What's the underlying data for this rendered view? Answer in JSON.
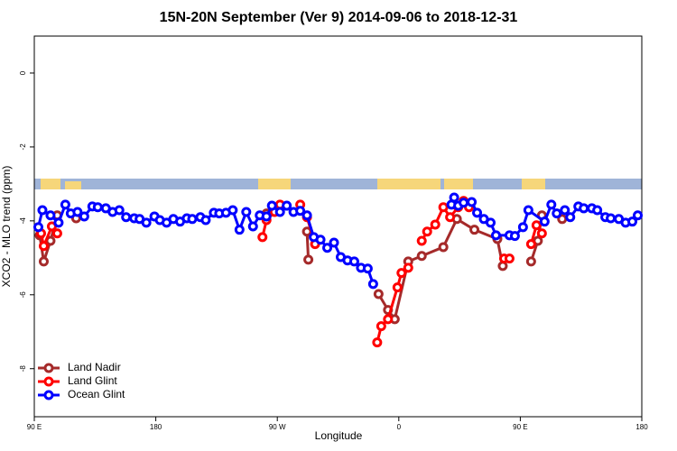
{
  "chart_data": {
    "type": "line",
    "title": "15N-20N September (Ver 9)   2014-09-06 to 2018-12-31",
    "x_label": "Longitude",
    "y_label": "XCO2 - MLO trend (ppm)",
    "xlim": [
      -270,
      180
    ],
    "xticks": [
      {
        "value": -270,
        "label": "90 E"
      },
      {
        "value": -180,
        "label": "180"
      },
      {
        "value": -90,
        "label": "90 W"
      },
      0,
      {
        "value": 90,
        "label": "90 E"
      },
      180
    ],
    "ylim": [
      -9.3,
      1.0
    ],
    "yticks": [
      0,
      -2,
      -4,
      -6,
      -8
    ],
    "legend": "bottom-left",
    "series": [
      {
        "name": "Land Nadir",
        "color": "#a52a2a",
        "x": [
          -266,
          -263,
          -258,
          -253,
          null,
          -239,
          null,
          -98,
          null,
          -68,
          -67,
          null,
          -15,
          -8,
          -3,
          7,
          17,
          33,
          43,
          56,
          73,
          77,
          null,
          98,
          103,
          106,
          null,
          121
        ],
        "values": [
          -4.39,
          -5.1,
          -4.54,
          -3.85,
          null,
          -3.93,
          null,
          -3.8,
          null,
          -4.29,
          -5.05,
          null,
          -5.98,
          -6.41,
          -6.66,
          -5.1,
          -4.95,
          -4.71,
          -3.95,
          -4.24,
          -4.49,
          -5.22,
          null,
          -5.1,
          -4.54,
          -3.85,
          null,
          -3.95
        ]
      },
      {
        "name": "Land Glint",
        "color": "#ff0000",
        "x": [
          -265,
          -263,
          -257,
          -253,
          null,
          -101,
          -98,
          -92,
          -88,
          null,
          -73,
          -68,
          -62,
          null,
          -16,
          -13,
          -8,
          -1,
          2,
          7,
          null,
          17,
          21,
          27,
          33,
          38,
          44,
          48,
          52,
          null,
          78,
          82,
          null,
          98,
          102,
          106
        ],
        "values": [
          -4.34,
          -4.68,
          -4.15,
          -4.34,
          null,
          -4.44,
          -3.98,
          -3.76,
          -3.56,
          null,
          -3.56,
          -3.9,
          -4.63,
          null,
          -7.29,
          -6.85,
          -6.66,
          -5.8,
          -5.41,
          -5.27,
          null,
          -4.54,
          -4.29,
          -4.1,
          -3.63,
          -3.9,
          -3.63,
          -3.46,
          -3.63,
          null,
          -5.02,
          -5.02,
          null,
          -4.63,
          -4.12,
          -4.34
        ]
      },
      {
        "name": "Ocean Glint",
        "color": "#0000ff",
        "x": [
          -267,
          -264,
          -258,
          -252,
          -247,
          -243,
          -238,
          -233,
          -227,
          -223,
          -217,
          -212,
          -207,
          -202,
          -196,
          -192,
          -187,
          -181,
          -177,
          -172,
          -167,
          -162,
          -157,
          -153,
          -147,
          -143,
          -137,
          -133,
          -128,
          -123,
          -118,
          -113,
          -108,
          -103,
          -98,
          -94,
          -88,
          -83,
          -78,
          -73,
          -68,
          -63,
          -58,
          -53,
          -48,
          -43,
          -38,
          -33,
          -28,
          -23,
          -19,
          null,
          39,
          41,
          44,
          48,
          54,
          58,
          63,
          68,
          72,
          82,
          86,
          92,
          96,
          108,
          113,
          117,
          123,
          127,
          133,
          137,
          143,
          147,
          153,
          157,
          163,
          168,
          173,
          177
        ],
        "values": [
          -4.17,
          -3.71,
          -3.85,
          -4.05,
          -3.56,
          -3.8,
          -3.76,
          -3.88,
          -3.61,
          -3.63,
          -3.66,
          -3.76,
          -3.71,
          -3.9,
          -3.93,
          -3.95,
          -4.05,
          -3.88,
          -3.98,
          -4.05,
          -3.95,
          -4.02,
          -3.93,
          -3.95,
          -3.9,
          -3.98,
          -3.78,
          -3.8,
          -3.78,
          -3.71,
          -4.24,
          -3.76,
          -4.15,
          -3.85,
          -3.88,
          -3.59,
          -3.76,
          -3.59,
          -3.76,
          -3.73,
          -3.85,
          -4.44,
          -4.51,
          -4.73,
          -4.59,
          -4.98,
          -5.07,
          -5.1,
          -5.27,
          -5.29,
          -5.71,
          null,
          -3.56,
          -3.37,
          -3.59,
          -3.51,
          -3.49,
          -3.78,
          -3.95,
          -4.05,
          -4.39,
          -4.39,
          -4.41,
          -4.17,
          -3.71,
          -4.02,
          -3.56,
          -3.8,
          -3.71,
          -3.9,
          -3.61,
          -3.66,
          -3.66,
          -3.71,
          -3.9,
          -3.93,
          -3.95,
          -4.05,
          -4.02,
          -3.85
        ]
      }
    ]
  }
}
